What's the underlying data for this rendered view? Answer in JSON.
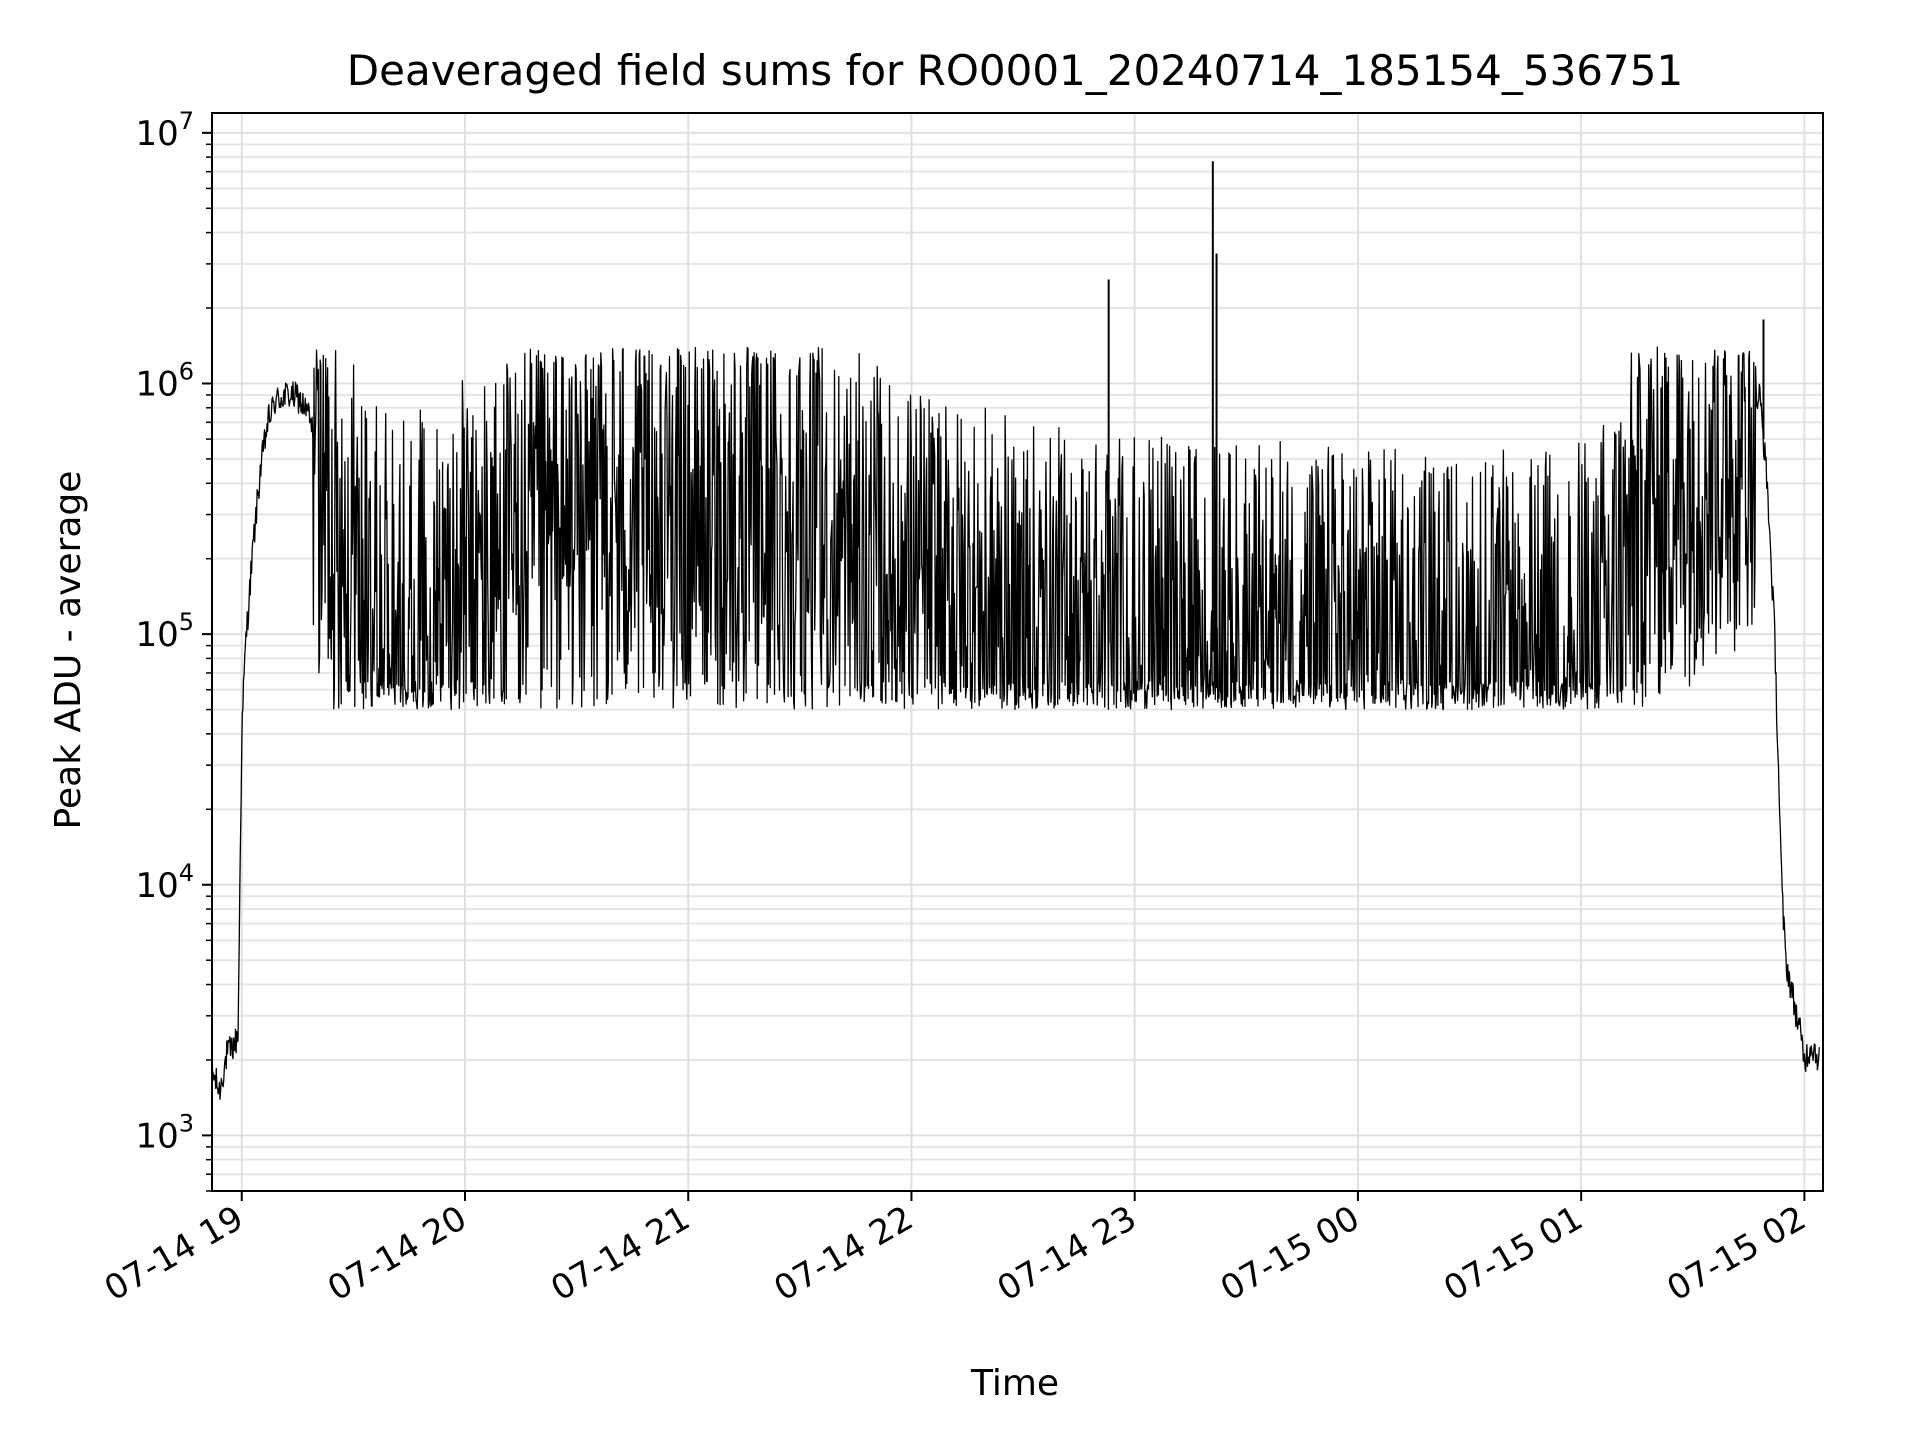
{
  "chart_data": {
    "type": "line",
    "title": "Deaveraged field sums for RO0001_20240714_185154_536751",
    "xlabel": "Time",
    "ylabel": "Peak ADU - average",
    "yscale": "log",
    "ylim": [
      600,
      12000000
    ],
    "xlim": [
      "2024-07-14 18:52",
      "2024-07-15 02:05"
    ],
    "grid": true,
    "x_ticks": [
      {
        "label": "07-14 19",
        "time": "2024-07-14 19:00"
      },
      {
        "label": "07-14 20",
        "time": "2024-07-14 20:00"
      },
      {
        "label": "07-14 21",
        "time": "2024-07-14 21:00"
      },
      {
        "label": "07-14 22",
        "time": "2024-07-14 22:00"
      },
      {
        "label": "07-14 23",
        "time": "2024-07-14 23:00"
      },
      {
        "label": "07-15 00",
        "time": "2024-07-15 00:00"
      },
      {
        "label": "07-15 01",
        "time": "2024-07-15 01:00"
      },
      {
        "label": "07-15 02",
        "time": "2024-07-15 02:00"
      }
    ],
    "y_ticks": [
      {
        "base": "10",
        "exp": "3",
        "value": 1000
      },
      {
        "base": "10",
        "exp": "4",
        "value": 10000
      },
      {
        "base": "10",
        "exp": "5",
        "value": 100000
      },
      {
        "base": "10",
        "exp": "6",
        "value": 1000000
      },
      {
        "base": "10",
        "exp": "7",
        "value": 10000000
      }
    ],
    "series": [
      {
        "color": "#000000",
        "points": [
          [
            "2024-07-14 18:52",
            1800
          ],
          [
            "2024-07-14 18:54",
            1500
          ],
          [
            "2024-07-14 18:56",
            2100
          ],
          [
            "2024-07-14 18:58",
            2300
          ],
          [
            "2024-07-14 18:59",
            2500
          ],
          [
            "2024-07-14 19:00",
            40000
          ],
          [
            "2024-07-14 19:01",
            90000
          ],
          [
            "2024-07-14 19:03",
            220000
          ],
          [
            "2024-07-14 19:05",
            450000
          ],
          [
            "2024-07-14 19:07",
            700000
          ],
          [
            "2024-07-14 19:09",
            850000
          ],
          [
            "2024-07-14 19:12",
            900000
          ],
          [
            "2024-07-14 19:15",
            880000
          ],
          [
            "2024-07-14 19:18",
            750000
          ],
          [
            "2024-07-14 19:20",
            550000
          ],
          [
            "2024-07-14 19:22",
            400000
          ],
          [
            "2024-07-14 19:24",
            300000
          ],
          [
            "2024-07-14 19:27",
            250000
          ],
          [
            "2024-07-14 19:30",
            200000
          ],
          [
            "2024-07-14 19:33",
            150000
          ],
          [
            "2024-07-14 19:36",
            120000
          ],
          [
            "2024-07-14 19:40",
            110000
          ],
          [
            "2024-07-14 19:45",
            110000
          ],
          [
            "2024-07-14 19:50",
            120000
          ],
          [
            "2024-07-14 20:00",
            150000
          ],
          [
            "2024-07-14 20:15",
            200000
          ],
          [
            "2024-07-14 20:30",
            260000
          ],
          [
            "2024-07-14 20:45",
            300000
          ],
          [
            "2024-07-14 21:00",
            310000
          ],
          [
            "2024-07-14 21:15",
            280000
          ],
          [
            "2024-07-14 21:30",
            240000
          ],
          [
            "2024-07-14 21:45",
            190000
          ],
          [
            "2024-07-14 22:00",
            150000
          ],
          [
            "2024-07-14 22:15",
            120000
          ],
          [
            "2024-07-14 22:30",
            100000
          ],
          [
            "2024-07-14 22:45",
            95000
          ],
          [
            "2024-07-14 23:00",
            90000
          ],
          [
            "2024-07-14 23:15",
            85000
          ],
          [
            "2024-07-14 23:30",
            85000
          ],
          [
            "2024-07-14 23:45",
            85000
          ],
          [
            "2024-07-15 00:00",
            80000
          ],
          [
            "2024-07-15 00:15",
            80000
          ],
          [
            "2024-07-15 00:30",
            78000
          ],
          [
            "2024-07-15 00:45",
            78000
          ],
          [
            "2024-07-15 00:55",
            80000
          ],
          [
            "2024-07-15 01:00",
            85000
          ],
          [
            "2024-07-15 01:05",
            100000
          ],
          [
            "2024-07-15 01:10",
            150000
          ],
          [
            "2024-07-15 01:15",
            250000
          ],
          [
            "2024-07-15 01:20",
            350000
          ],
          [
            "2024-07-15 01:30",
            450000
          ],
          [
            "2024-07-15 01:40",
            550000
          ],
          [
            "2024-07-15 01:45",
            700000
          ],
          [
            "2024-07-15 01:48",
            900000
          ],
          [
            "2024-07-15 01:50",
            400000
          ],
          [
            "2024-07-15 01:52",
            100000
          ],
          [
            "2024-07-15 01:53",
            30000
          ],
          [
            "2024-07-15 01:54",
            9000
          ],
          [
            "2024-07-15 01:55",
            5000
          ],
          [
            "2024-07-15 01:57",
            3500
          ],
          [
            "2024-07-15 01:59",
            2500
          ],
          [
            "2024-07-15 02:00",
            2000
          ],
          [
            "2024-07-15 02:02",
            2300
          ],
          [
            "2024-07-15 02:04",
            2000
          ]
        ],
        "spikes": [
          [
            "2024-07-14 22:53",
            2600000
          ],
          [
            "2024-07-14 23:21",
            7700000
          ],
          [
            "2024-07-14 23:22",
            3300000
          ],
          [
            "2024-07-15 01:49",
            1800000
          ]
        ]
      }
    ]
  }
}
